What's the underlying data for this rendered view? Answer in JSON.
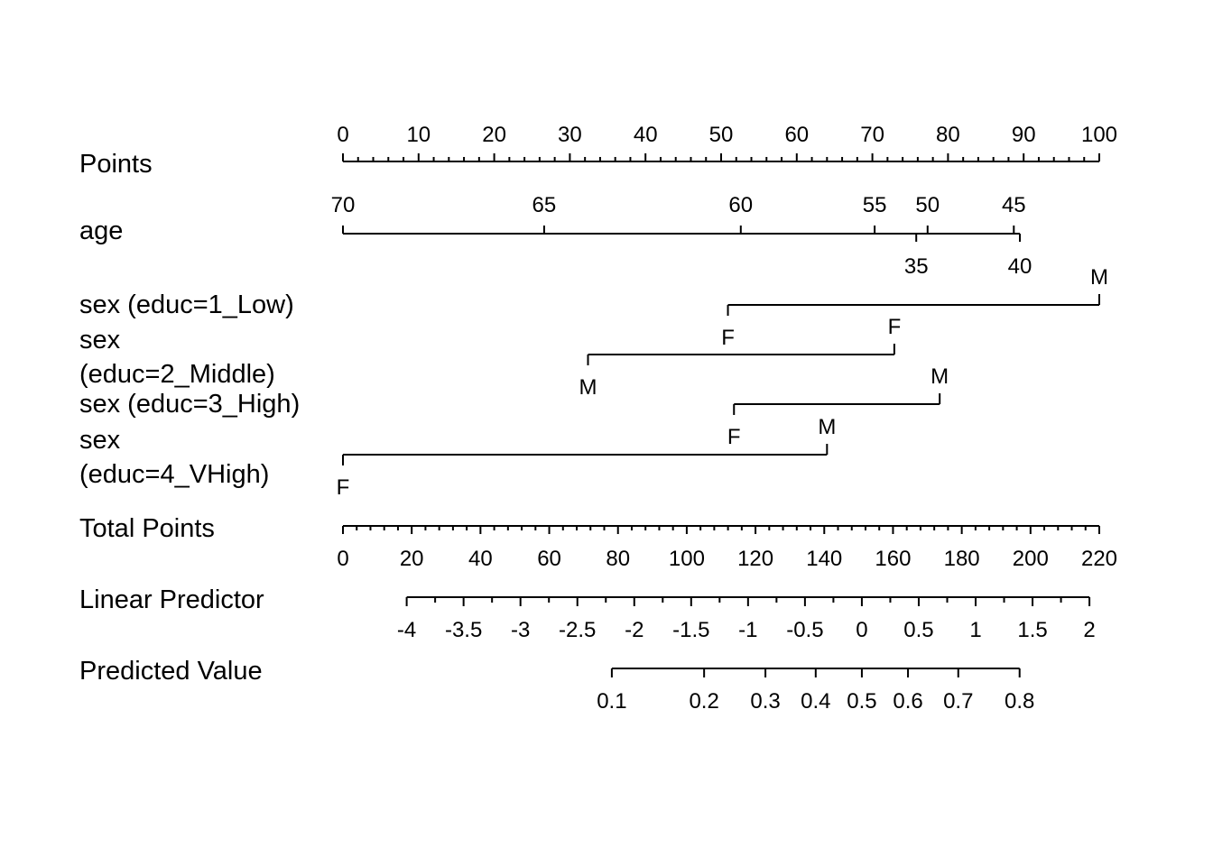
{
  "chart_data": {
    "type": "nomogram",
    "rows": [
      {
        "label": [
          "Points"
        ],
        "type": "points",
        "major": [
          0,
          10,
          20,
          30,
          40,
          50,
          60,
          70,
          80,
          90,
          100
        ]
      },
      {
        "label": [
          "age"
        ],
        "type": "variable",
        "ticks": [
          {
            "label": "70",
            "points": 0
          },
          {
            "label": "65",
            "points": 26.6
          },
          {
            "label": "60",
            "points": 52.6
          },
          {
            "label": "55",
            "points": 70.3
          },
          {
            "label": "50",
            "points": 77.3
          },
          {
            "label": "45",
            "points": 88.7
          },
          {
            "label": "40",
            "points": 89.5
          },
          {
            "label": "35",
            "points": 75.8
          }
        ]
      },
      {
        "label": [
          "sex (educ=1_Low)"
        ],
        "type": "variable",
        "ticks": [
          {
            "label": "F",
            "points": 50.9
          },
          {
            "label": "M",
            "points": 100
          }
        ]
      },
      {
        "label": [
          "sex",
          "(educ=2_Middle)"
        ],
        "type": "variable",
        "ticks": [
          {
            "label": "M",
            "points": 32.4
          },
          {
            "label": "F",
            "points": 72.9
          }
        ]
      },
      {
        "label": [
          "sex (educ=3_High)"
        ],
        "type": "variable",
        "ticks": [
          {
            "label": "F",
            "points": 51.7
          },
          {
            "label": "M",
            "points": 78.9
          }
        ]
      },
      {
        "label": [
          "sex",
          "(educ=4_VHigh)"
        ],
        "type": "variable",
        "ticks": [
          {
            "label": "F",
            "points": 0
          },
          {
            "label": "M",
            "points": 64.0
          }
        ]
      },
      {
        "label": [
          "Total Points"
        ],
        "type": "total",
        "range": [
          0,
          220
        ],
        "major": [
          0,
          20,
          40,
          60,
          80,
          100,
          120,
          140,
          160,
          180,
          200,
          220
        ]
      },
      {
        "label": [
          "Linear Predictor"
        ],
        "type": "lp",
        "ticks": [
          {
            "label": "-4",
            "value": -4
          },
          {
            "label": "-3.5",
            "value": -3.5
          },
          {
            "label": "-3",
            "value": -3
          },
          {
            "label": "-2.5",
            "value": -2.5
          },
          {
            "label": "-2",
            "value": -2
          },
          {
            "label": "-1.5",
            "value": -1.5
          },
          {
            "label": "-1",
            "value": -1
          },
          {
            "label": "-0.5",
            "value": -0.5
          },
          {
            "label": "0",
            "value": 0
          },
          {
            "label": "0.5",
            "value": 0.5
          },
          {
            "label": "1",
            "value": 1
          },
          {
            "label": "1.5",
            "value": 1.5
          },
          {
            "label": "2",
            "value": 2
          }
        ]
      },
      {
        "label": [
          "Predicted Value"
        ],
        "type": "prob",
        "ticks": [
          {
            "label": "0.1",
            "value": 0.1
          },
          {
            "label": "0.2",
            "value": 0.2
          },
          {
            "label": "0.3",
            "value": 0.3
          },
          {
            "label": "0.4",
            "value": 0.4
          },
          {
            "label": "0.5",
            "value": 0.5
          },
          {
            "label": "0.6",
            "value": 0.6
          },
          {
            "label": "0.7",
            "value": 0.7
          },
          {
            "label": "0.8",
            "value": 0.8
          }
        ]
      }
    ]
  }
}
